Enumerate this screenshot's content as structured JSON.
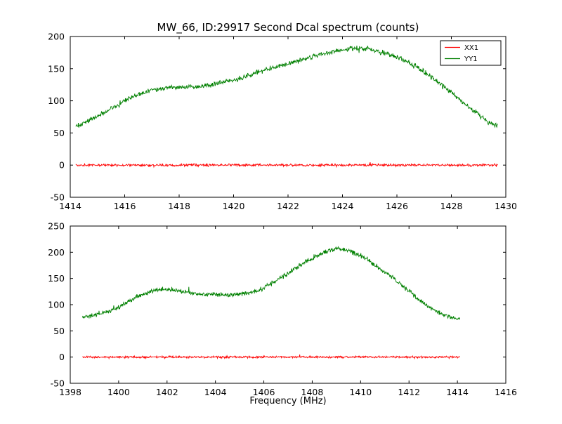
{
  "figure": {
    "background": "#ffffff",
    "frame_color": "#000000"
  },
  "chart_data": [
    {
      "type": "line",
      "title": "MW_66, ID:29917 Second Dcal spectrum (counts)",
      "xlabel": "",
      "ylabel": "",
      "xlim": [
        1414,
        1430
      ],
      "ylim": [
        -50,
        200
      ],
      "xticks": [
        1414,
        1416,
        1418,
        1420,
        1422,
        1424,
        1426,
        1428,
        1430
      ],
      "yticks": [
        -50,
        0,
        50,
        100,
        150,
        200
      ],
      "grid": false,
      "legend": {
        "position": "upper right",
        "entries": [
          {
            "label": "XX1",
            "color": "#ff0000"
          },
          {
            "label": "YY1",
            "color": "#008000"
          }
        ]
      },
      "series": [
        {
          "name": "XX1",
          "color": "#ff0000",
          "noise": 1.8,
          "anchors": [
            [
              1414.2,
              0
            ],
            [
              1429.7,
              0
            ]
          ]
        },
        {
          "name": "YY1",
          "color": "#008000",
          "noise": 3.5,
          "anchors": [
            [
              1414.2,
              60
            ],
            [
              1415,
              76
            ],
            [
              1415.5,
              88
            ],
            [
              1416,
              100
            ],
            [
              1416.5,
              110
            ],
            [
              1417,
              117
            ],
            [
              1417.5,
              120
            ],
            [
              1418,
              120
            ],
            [
              1418.5,
              122
            ],
            [
              1419,
              124
            ],
            [
              1419.5,
              128
            ],
            [
              1420,
              132
            ],
            [
              1420.5,
              138
            ],
            [
              1421,
              146
            ],
            [
              1421.5,
              152
            ],
            [
              1422,
              158
            ],
            [
              1422.5,
              164
            ],
            [
              1423,
              170
            ],
            [
              1423.5,
              175
            ],
            [
              1424,
              180
            ],
            [
              1424.5,
              182
            ],
            [
              1425,
              180
            ],
            [
              1425.5,
              175
            ],
            [
              1426,
              168
            ],
            [
              1426.5,
              158
            ],
            [
              1427,
              145
            ],
            [
              1427.5,
              130
            ],
            [
              1428,
              113
            ],
            [
              1428.5,
              95
            ],
            [
              1429,
              78
            ],
            [
              1429.4,
              66
            ],
            [
              1429.7,
              61
            ]
          ]
        }
      ]
    },
    {
      "type": "line",
      "title": "",
      "xlabel": "Frequency (MHz)",
      "ylabel": "",
      "xlim": [
        1398,
        1416
      ],
      "ylim": [
        -50,
        250
      ],
      "xticks": [
        1398,
        1400,
        1402,
        1404,
        1406,
        1408,
        1410,
        1412,
        1414,
        1416
      ],
      "yticks": [
        -50,
        0,
        50,
        100,
        150,
        200,
        250
      ],
      "grid": false,
      "series": [
        {
          "name": "XX1",
          "color": "#ff0000",
          "noise": 1.8,
          "anchors": [
            [
              1398.5,
              0
            ],
            [
              1414.1,
              0
            ]
          ]
        },
        {
          "name": "YY1",
          "color": "#008000",
          "noise": 4,
          "anchors": [
            [
              1398.5,
              75
            ],
            [
              1399,
              80
            ],
            [
              1399.5,
              86
            ],
            [
              1400,
              95
            ],
            [
              1400.5,
              108
            ],
            [
              1401,
              120
            ],
            [
              1401.5,
              128
            ],
            [
              1402,
              130
            ],
            [
              1402.5,
              126
            ],
            [
              1403,
              122
            ],
            [
              1403.5,
              120
            ],
            [
              1404,
              119
            ],
            [
              1404.5,
              118
            ],
            [
              1405,
              120
            ],
            [
              1405.5,
              124
            ],
            [
              1406,
              132
            ],
            [
              1406.5,
              145
            ],
            [
              1407,
              160
            ],
            [
              1407.5,
              175
            ],
            [
              1408,
              188
            ],
            [
              1408.5,
              200
            ],
            [
              1409,
              207
            ],
            [
              1409.5,
              203
            ],
            [
              1410,
              193
            ],
            [
              1410.5,
              178
            ],
            [
              1411,
              162
            ],
            [
              1411.5,
              145
            ],
            [
              1412,
              126
            ],
            [
              1412.5,
              106
            ],
            [
              1413,
              90
            ],
            [
              1413.5,
              79
            ],
            [
              1414,
              73
            ],
            [
              1414.1,
              72
            ]
          ]
        }
      ]
    }
  ]
}
